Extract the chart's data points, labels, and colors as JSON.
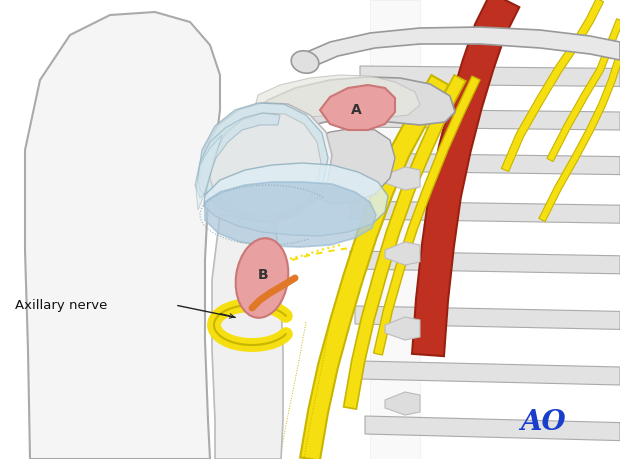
{
  "bg_color": "#ffffff",
  "fig_width": 6.2,
  "fig_height": 4.59,
  "dpi": 100,
  "ao_text": "AO",
  "ao_color": "#1a3ecc",
  "axillary_nerve_label": "Axillary nerve",
  "bone_color": "#e8e8e8",
  "bone_outline": "#999999",
  "bone_outline2": "#bbbbbb",
  "cart_color": "#c8dfe8",
  "cart_outline": "#8aabbb",
  "cart_light": "#ddeef5",
  "blue_band": "#9bbdd4",
  "blue_band2": "#aec8dc",
  "red_highlight": "#e8a0a0",
  "red_highlight2": "#f0b8b8",
  "red_outline": "#cc7777",
  "yellow": "#f5df10",
  "yellow_out": "#c8b500",
  "red_vessel": "#c03020",
  "red_vessel_out": "#992010",
  "rib_fill": "#e2e2e2",
  "rib_out": "#aaaaaa",
  "skin_fill": "#f5f5f5",
  "skin_out": "#aaaaaa",
  "orange": "#e07828"
}
